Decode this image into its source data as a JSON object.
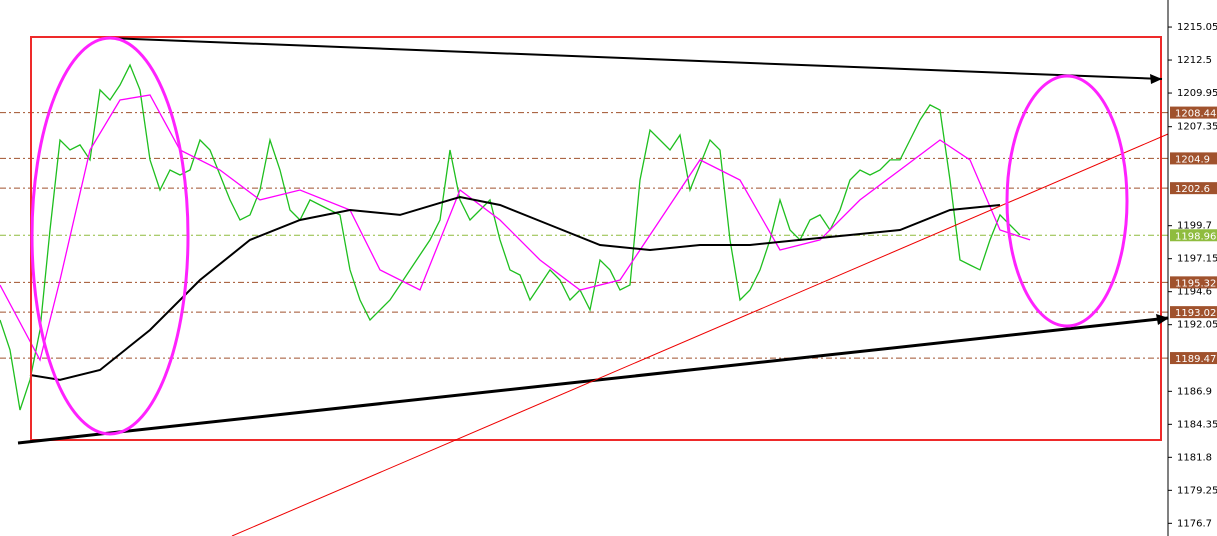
{
  "chart_data": {
    "type": "line",
    "ylim": [
      1175.72,
      1217.14
    ],
    "xlim": [
      0,
      116.8
    ],
    "yticks": [
      1215.05,
      1212.5,
      1209.95,
      1207.35,
      1199.7,
      1197.15,
      1194.6,
      1192.05,
      1186.9,
      1184.35,
      1181.8,
      1179.25,
      1176.7
    ],
    "series": [
      {
        "color": "#1fbf1f",
        "values": [
          1192.41,
          1190.1,
          1185.46,
          1187.78,
          1191.64,
          1199.37,
          1206.32,
          1205.55,
          1205.94,
          1204.78,
          1210.19,
          1209.41,
          1210.57,
          1212.12,
          1210.19,
          1204.78,
          1202.46,
          1204.0,
          1203.62,
          1204.0,
          1206.32,
          1205.55,
          1203.62,
          1201.69,
          1200.14,
          1200.53,
          1202.46,
          1206.32,
          1204.0,
          1200.91,
          1200.14,
          1201.69,
          1201.3,
          1200.91,
          1200.53,
          1196.28,
          1193.96,
          1192.41,
          1193.19,
          1193.96,
          1195.12,
          1196.28,
          1197.44,
          1198.6,
          1200.14,
          1205.55,
          1201.69,
          1200.14,
          1200.91,
          1201.69,
          1198.6,
          1196.28,
          1195.89,
          1193.96,
          1195.12,
          1196.28,
          1195.5,
          1193.96,
          1194.73,
          1193.19,
          1197.05,
          1196.28,
          1194.73,
          1195.12,
          1203.23,
          1207.09,
          1206.32,
          1205.55,
          1206.71,
          1202.46,
          1204.39,
          1206.32,
          1205.55,
          1198.6,
          1193.96,
          1194.73,
          1196.28,
          1198.6,
          1201.69,
          1199.37,
          1198.6,
          1200.14,
          1200.53,
          1199.37,
          1200.91,
          1203.23,
          1204.0,
          1203.62,
          1204.0,
          1204.78,
          1204.78,
          1206.32,
          1207.87,
          1209.03,
          1208.64,
          1203.23,
          1197.05,
          1196.66,
          1196.28,
          1198.6,
          1200.53,
          1199.75,
          1198.98
        ]
      },
      {
        "color": "#ff00ff",
        "x": [
          0,
          4,
          6,
          9,
          12,
          15,
          18,
          22,
          26,
          30,
          35,
          38,
          42,
          46,
          50,
          54,
          58,
          62,
          66,
          70,
          74,
          78,
          82,
          86,
          90,
          94,
          97,
          100,
          103
        ],
        "values": [
          1195.12,
          1189.32,
          1195.5,
          1205.55,
          1209.41,
          1209.8,
          1205.55,
          1204.0,
          1201.69,
          1202.46,
          1200.91,
          1196.28,
          1194.73,
          1202.46,
          1200.14,
          1197.05,
          1194.73,
          1195.5,
          1200.14,
          1204.78,
          1203.23,
          1197.82,
          1198.6,
          1201.69,
          1204.0,
          1206.32,
          1204.78,
          1199.37,
          1198.6
        ]
      },
      {
        "color": "#000000",
        "x": [
          3,
          6,
          10,
          15,
          20,
          25,
          30,
          35,
          40,
          45,
          46,
          50,
          55,
          60,
          65,
          70,
          75,
          80,
          85,
          90,
          95,
          100
        ],
        "values": [
          1188.16,
          1187.78,
          1188.55,
          1191.64,
          1195.5,
          1198.6,
          1200.14,
          1200.91,
          1200.53,
          1201.69,
          1201.92,
          1201.3,
          1199.75,
          1198.21,
          1197.82,
          1198.21,
          1198.21,
          1198.6,
          1198.98,
          1199.37,
          1200.91,
          1201.3
        ]
      }
    ],
    "levels": [
      {
        "value": 1208.44,
        "color": "#a0522d"
      },
      {
        "value": 1204.9,
        "color": "#a0522d"
      },
      {
        "value": 1202.6,
        "color": "#a0522d"
      },
      {
        "value": 1198.96,
        "color": "#8fbc3f"
      },
      {
        "value": 1195.32,
        "color": "#a0522d"
      },
      {
        "value": 1193.02,
        "color": "#a0522d"
      },
      {
        "value": 1189.47,
        "color": "#a0522d"
      }
    ]
  }
}
